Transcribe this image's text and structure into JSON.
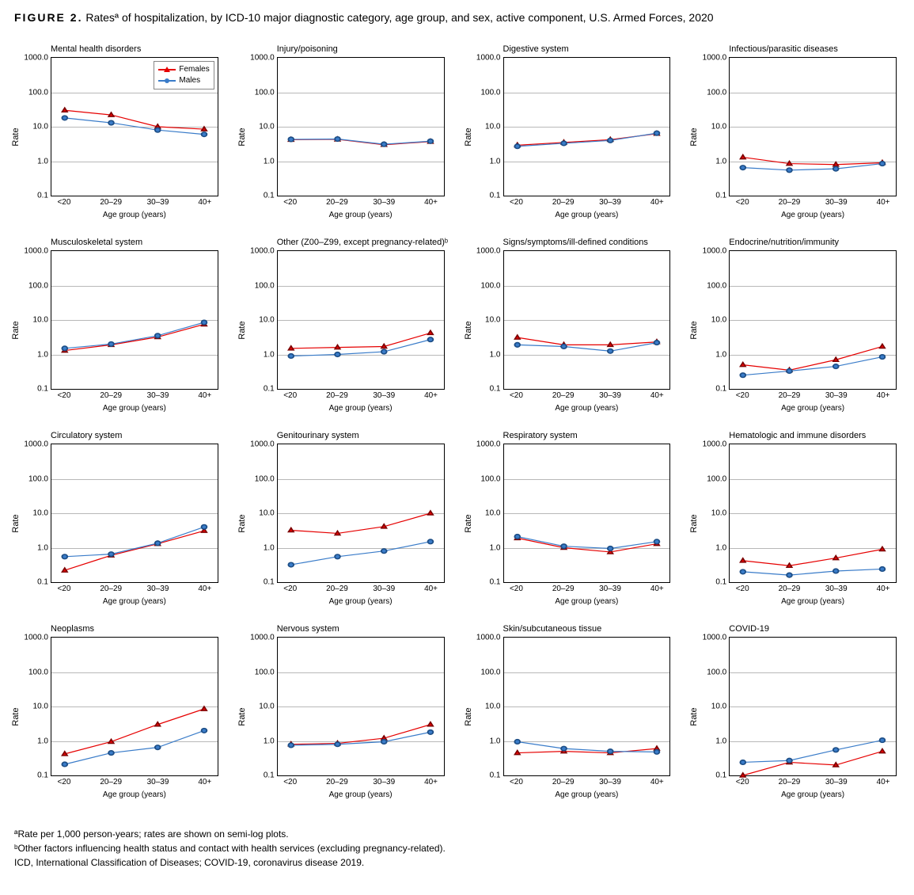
{
  "figure_label": "FIGURE 2.",
  "figure_title": "Ratesª of hospitalization, by ICD-10 major diagnostic category, age group, and sex, active component, U.S. Armed Forces, 2020",
  "x_categories": [
    "<20",
    "20–29",
    "30–39",
    "40+"
  ],
  "x_axis_label": "Age group (years)",
  "y_axis_label": "Rate",
  "y_ticks": [
    0.1,
    1.0,
    10.0,
    100.0,
    1000.0
  ],
  "y_tick_labels": [
    "0.1",
    "1.0",
    "10.0",
    "100.0",
    "1000.0"
  ],
  "y_range_log10": [
    -1,
    3
  ],
  "colors": {
    "females": "#e60000",
    "males": "#3a7cc9",
    "grid": "#b8b8b8",
    "border": "#000000",
    "bg": "#ffffff"
  },
  "legend": {
    "females": "Females",
    "males": "Males",
    "panel_index": 0
  },
  "series_style": {
    "females": {
      "line_width": 2,
      "marker": "triangle",
      "marker_size": 8
    },
    "males": {
      "line_width": 2,
      "marker": "circle",
      "marker_size": 7
    }
  },
  "panels": [
    {
      "title": "Mental health disorders",
      "females": [
        30,
        22,
        10,
        8.5
      ],
      "males": [
        18,
        13,
        8,
        6
      ]
    },
    {
      "title": "Injury/poisoning",
      "females": [
        4.2,
        4.3,
        3.0,
        3.7
      ],
      "males": [
        4.3,
        4.4,
        3.1,
        3.8
      ]
    },
    {
      "title": "Digestive system",
      "females": [
        2.9,
        3.5,
        4.2,
        6.3
      ],
      "males": [
        2.7,
        3.3,
        4.0,
        6.5
      ]
    },
    {
      "title": "Infectious/parasitic diseases",
      "females": [
        1.3,
        0.85,
        0.8,
        0.9
      ],
      "males": [
        0.65,
        0.55,
        0.6,
        0.85
      ]
    },
    {
      "title": "Musculoskeletal system",
      "females": [
        1.3,
        1.9,
        3.2,
        7.5
      ],
      "males": [
        1.5,
        2.0,
        3.5,
        8.5
      ]
    },
    {
      "title": "Other (Z00–Z99, except pregnancy-related)ᵇ",
      "females": [
        1.5,
        1.6,
        1.7,
        4.2
      ],
      "males": [
        0.9,
        1.0,
        1.2,
        2.7
      ]
    },
    {
      "title": "Signs/symptoms/ill-defined conditions",
      "females": [
        3.1,
        1.9,
        1.9,
        2.3
      ],
      "males": [
        1.9,
        1.7,
        1.25,
        2.2
      ]
    },
    {
      "title": "Endocrine/nutrition/immunity",
      "females": [
        0.5,
        0.35,
        0.7,
        1.7
      ],
      "males": [
        0.25,
        0.33,
        0.45,
        0.85
      ]
    },
    {
      "title": "Circulatory system",
      "females": [
        0.22,
        0.6,
        1.3,
        3.1
      ],
      "males": [
        0.55,
        0.65,
        1.35,
        4.0
      ]
    },
    {
      "title": "Genitourinary system",
      "females": [
        3.2,
        2.6,
        4.1,
        10.0
      ],
      "males": [
        0.32,
        0.55,
        0.8,
        1.5
      ]
    },
    {
      "title": "Respiratory system",
      "females": [
        1.9,
        1.0,
        0.75,
        1.3
      ],
      "males": [
        2.1,
        1.1,
        0.95,
        1.5
      ]
    },
    {
      "title": "Hematologic and immune disorders",
      "females": [
        0.42,
        0.3,
        0.5,
        0.9
      ],
      "males": [
        0.2,
        0.16,
        0.21,
        0.24
      ]
    },
    {
      "title": "Neoplasms",
      "females": [
        0.42,
        0.95,
        3.0,
        8.5
      ],
      "males": [
        0.21,
        0.45,
        0.65,
        2.0
      ]
    },
    {
      "title": "Nervous system",
      "females": [
        0.8,
        0.85,
        1.2,
        3.0
      ],
      "males": [
        0.75,
        0.8,
        0.95,
        1.8
      ]
    },
    {
      "title": "Skin/subcutaneous tissue",
      "females": [
        0.45,
        0.5,
        0.45,
        0.6
      ],
      "males": [
        0.95,
        0.6,
        0.5,
        0.48
      ]
    },
    {
      "title": "COVID-19",
      "females": [
        0.1,
        0.24,
        0.2,
        0.5
      ],
      "males": [
        0.24,
        0.27,
        0.55,
        1.05
      ]
    }
  ],
  "footnotes": [
    "ªRate per 1,000 person-years; rates are shown on semi-log plots.",
    "ᵇOther factors influencing health status and contact with health services (excluding pregnancy-related).",
    "ICD, International Classification of Diseases; COVID-19, coronavirus disease 2019."
  ]
}
